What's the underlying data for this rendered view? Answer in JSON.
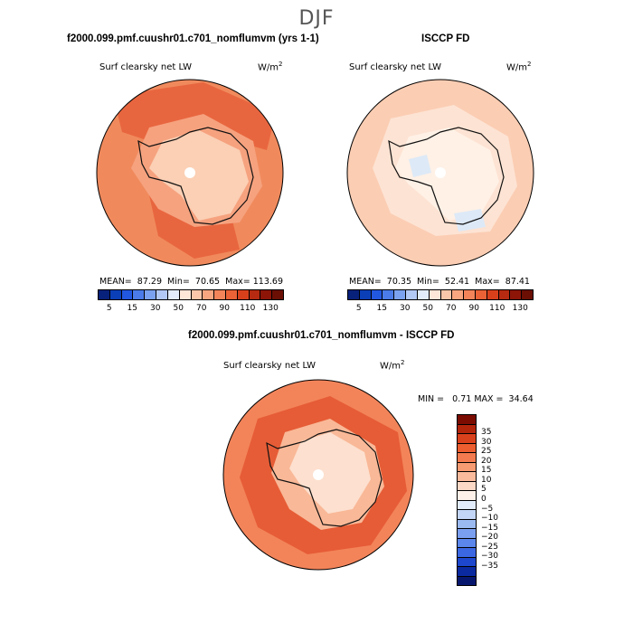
{
  "figure": {
    "season": "DJF",
    "colors": {
      "antarctic_outline": "#111111",
      "pole_hole": "#ffffff"
    }
  },
  "panel_model": {
    "title": "f2000.099.pmf.cuushr01.c701_nomflumvm (yrs 1-1)",
    "variable": "Surf clearsky net LW",
    "units_base": "W/m",
    "units_exp": "2",
    "stats": "MEAN=  87.29  Min=  70.65  Max= 113.69",
    "ocean_color": "#f08a5d",
    "inner_color": "#f6a27f",
    "land_color": "#fbd0b5",
    "blob_color": "#e8663f"
  },
  "panel_obs": {
    "title": "ISCCP FD",
    "variable": "Surf clearsky net LW",
    "units_base": "W/m",
    "units_exp": "2",
    "stats": "MEAN=  70.35  Min=  52.41  Max=  87.41",
    "ocean_color": "#fbcdb3",
    "inner_color": "#fde3d3",
    "land_color": "#fff1e6",
    "blob_color": "#dde9f7"
  },
  "panel_diff": {
    "title": "f2000.099.pmf.cuushr01.c701_nomflumvm - ISCCP FD",
    "variable": "Surf clearsky net LW",
    "units_base": "W/m",
    "units_exp": "2",
    "stats": "MIN =   0.71 MAX =  34.64",
    "ocean_color": "#f3845a",
    "inner_color": "#e65c36",
    "land_color": "#fde0cf",
    "blob_color": "#f9b897"
  },
  "colorbar_abs": {
    "colors": [
      "#08217a",
      "#0b3fb7",
      "#2257e0",
      "#4a7be9",
      "#7ba2f0",
      "#b2c9f6",
      "#e2ecfb",
      "#fde7d9",
      "#fbc7aa",
      "#f8a680",
      "#f3845a",
      "#ea6236",
      "#d8401c",
      "#b52a10",
      "#8c1508",
      "#6b0f04"
    ],
    "ticks": [
      "5",
      "15",
      "30",
      "50",
      "70",
      "90",
      "110",
      "130"
    ]
  },
  "colorbar_diff": {
    "colors": [
      "#7a0c02",
      "#b3250b",
      "#d9411c",
      "#ec5d2f",
      "#f37b4f",
      "#f79b73",
      "#fabb9c",
      "#fcd9c6",
      "#fdf1e9",
      "#e2ecfb",
      "#c3d6f7",
      "#9bbaf1",
      "#7b9ff0",
      "#5b86eb",
      "#3c67e2",
      "#1d47cd",
      "#0b2aa0",
      "#08176e"
    ],
    "ticks": [
      "35",
      "30",
      "25",
      "20",
      "15",
      "10",
      "5",
      "0",
      "−5",
      "−10",
      "−15",
      "−20",
      "−25",
      "−30",
      "−35"
    ]
  }
}
